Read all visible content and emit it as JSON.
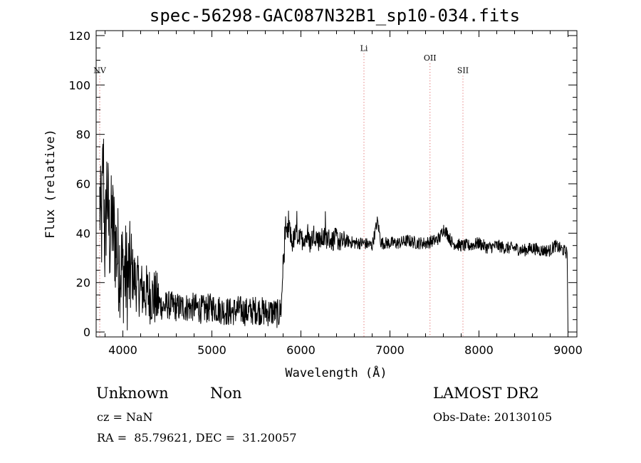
{
  "chart_data": {
    "type": "line",
    "title": "spec-56298-GAC087N32B1_sp10-034.fits",
    "xlabel": "Wavelength (Å)",
    "ylabel": "Flux (relative)",
    "xlim": [
      3700,
      9100
    ],
    "ylim": [
      -2,
      122
    ],
    "xticks": [
      4000,
      5000,
      6000,
      7000,
      8000,
      9000
    ],
    "yticks": [
      0,
      20,
      40,
      60,
      80,
      100,
      120
    ],
    "grid": false,
    "line_color": "#000000",
    "series": [
      {
        "x": [
          3740,
          3760,
          3780,
          3800,
          3820,
          3850,
          3880,
          3920,
          3960,
          4000,
          4050,
          4100,
          4150,
          4200,
          4250,
          4300,
          4350,
          4400,
          4450,
          4500,
          4600,
          4700,
          4800,
          4900,
          5000,
          5100,
          5200,
          5300,
          5400,
          5500,
          5600,
          5700,
          5750,
          5780,
          5800,
          5830,
          5870,
          5900,
          5950,
          6000,
          6050,
          6100,
          6150,
          6200,
          6250,
          6300,
          6350,
          6400,
          6450,
          6500,
          6600,
          6700,
          6800,
          6860,
          6900,
          7000,
          7100,
          7200,
          7300,
          7400,
          7500,
          7560,
          7600,
          7640,
          7700,
          7800,
          7900,
          8000,
          8100,
          8200,
          8300,
          8400,
          8500,
          8600,
          8700,
          8800,
          8850,
          8900,
          8950,
          8990,
          9000
        ],
        "y": [
          52,
          40,
          72,
          30,
          60,
          38,
          45,
          35,
          28,
          25,
          22,
          24,
          20,
          17,
          16,
          15,
          14,
          12,
          10,
          11,
          10,
          10,
          10,
          9,
          10,
          9,
          8,
          9,
          8,
          9,
          8,
          8,
          7,
          10,
          28,
          38,
          42,
          36,
          40,
          37,
          39,
          36,
          40,
          37,
          38,
          38,
          37,
          38,
          36,
          37,
          36,
          36,
          35,
          45,
          36,
          36,
          36,
          37,
          36,
          36,
          37,
          38,
          42,
          40,
          36,
          35,
          35,
          36,
          34,
          35,
          34,
          34,
          33,
          34,
          33,
          33,
          35,
          34,
          33,
          32,
          0
        ]
      }
    ],
    "lines": [
      {
        "label": "NV",
        "x": 3740,
        "label_y": 106
      },
      {
        "label": "Li",
        "x": 6708,
        "label_y": 115
      },
      {
        "label": "OII",
        "x": 7450,
        "label_y": 111
      },
      {
        "label": "SII",
        "x": 7820,
        "label_y": 106
      }
    ],
    "line_marker_color": "#d94c4c"
  },
  "info": {
    "object_class": "Unknown",
    "object_subclass": "Non",
    "survey": "LAMOST DR2",
    "cz": "cz = NaN",
    "obs_date": "Obs-Date: 20130105",
    "ra_dec": "RA =  85.79621, DEC =  31.20057"
  }
}
